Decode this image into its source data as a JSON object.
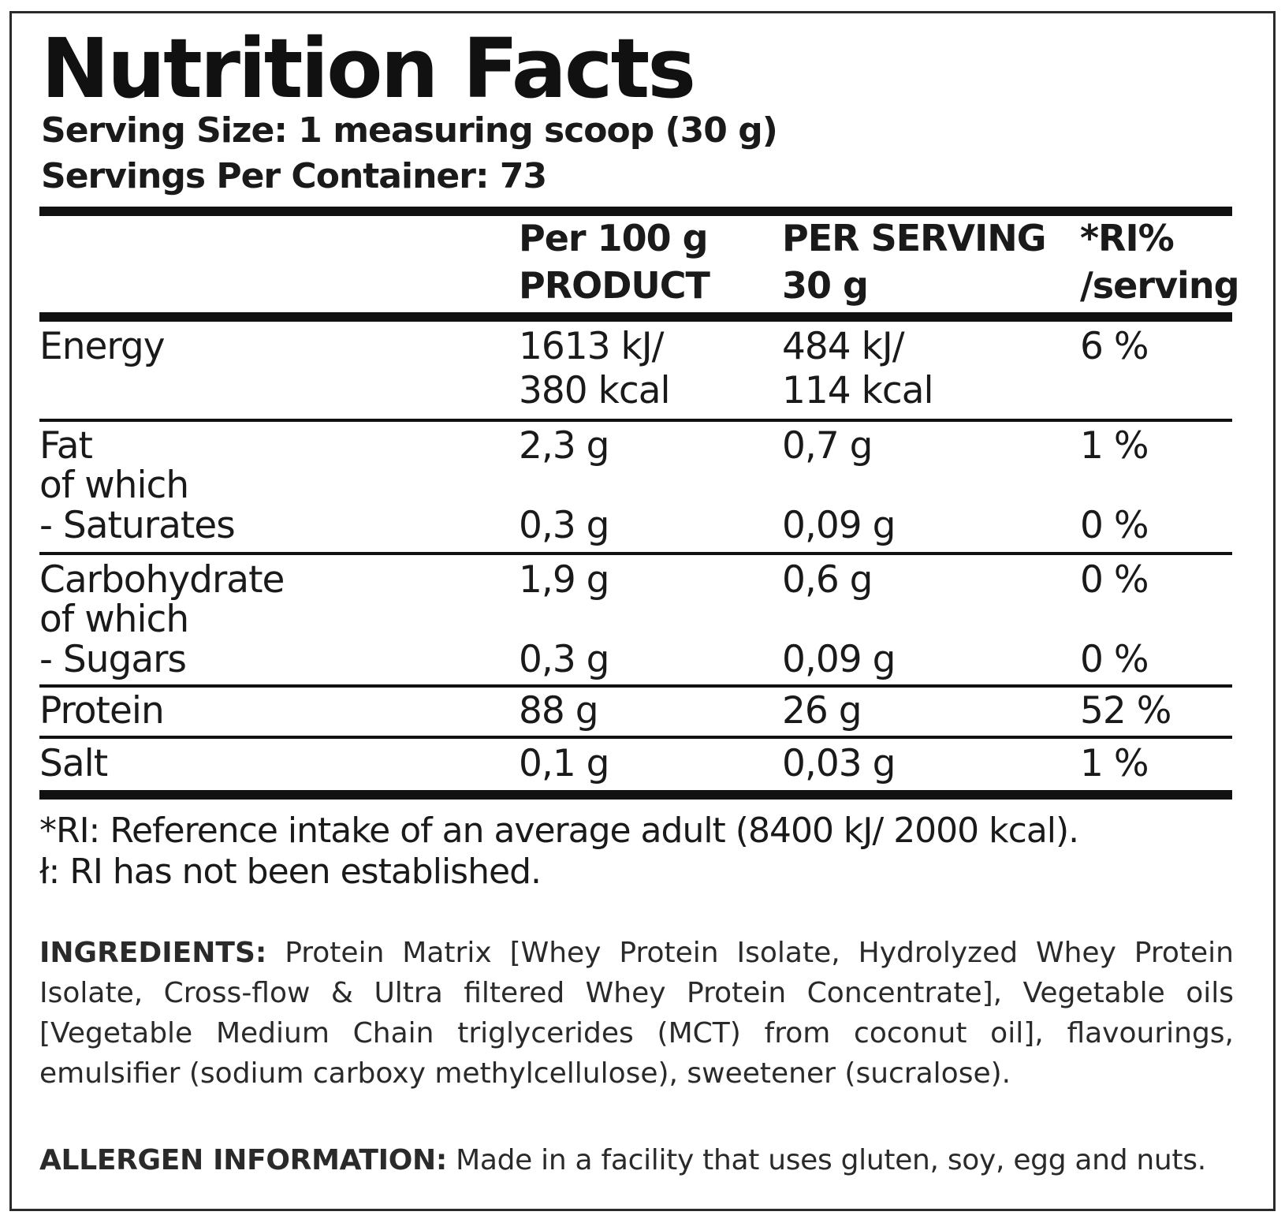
{
  "title": "Nutrition Facts",
  "serving_size": "Serving Size: 1 measuring scoop (30 g)",
  "servings_per_container": "Servings Per Container: 73",
  "header": {
    "col1_line1": "Per 100 g",
    "col1_line2": "PRODUCT",
    "col2_line1": "PER SERVING",
    "col2_line2": "30 g",
    "col3_line1": "*RI%",
    "col3_line2": "/serving"
  },
  "rows": {
    "energy": {
      "name": "Energy",
      "per100_l1": "1613 kJ/",
      "per100_l2": "380 kcal",
      "serving_l1": "484 kJ/",
      "serving_l2": "114 kcal",
      "ri": "6 %"
    },
    "fat": {
      "name": "Fat",
      "per100": "2,3 g",
      "serving": "0,7 g",
      "ri": "1 %"
    },
    "fat_of_which": "of which",
    "saturates": {
      "name": "- Saturates",
      "per100": "0,3 g",
      "serving": "0,09 g",
      "ri": "0 %"
    },
    "carbohydrate": {
      "name": "Carbohydrate",
      "per100": "1,9 g",
      "serving": "0,6 g",
      "ri": "0 %"
    },
    "carb_of_which": "of which",
    "sugars": {
      "name": "- Sugars",
      "per100": "0,3 g",
      "serving": "0,09 g",
      "ri": "0 %"
    },
    "protein": {
      "name": "Protein",
      "per100": "88 g",
      "serving": "26 g",
      "ri": "52 %"
    },
    "salt": {
      "name": "Salt",
      "per100": "0,1 g",
      "serving": "0,03 g",
      "ri": "1 %"
    }
  },
  "footnotes": {
    "ri": "*RI: Reference intake of an average adult (8400 kJ/ 2000 kcal).",
    "not_established": "ł: RI has not been established."
  },
  "ingredients": {
    "label": "INGREDIENTS:",
    "text": " Protein Matrix [Whey Protein Isolate, Hydrolyzed Whey Protein Isolate, Cross-flow & Ultra filtered Whey Protein Concentrate], Vegetable oils [Vegetable Medium Chain triglycerides (MCT) from coconut oil], flavourings, emulsifier (sodium carboxy methylcellulose), sweetener (sucralose)."
  },
  "allergen": {
    "label": "ALLERGEN INFORMATION:",
    "text": " Made in a facility that uses gluten, soy, egg and nuts."
  }
}
